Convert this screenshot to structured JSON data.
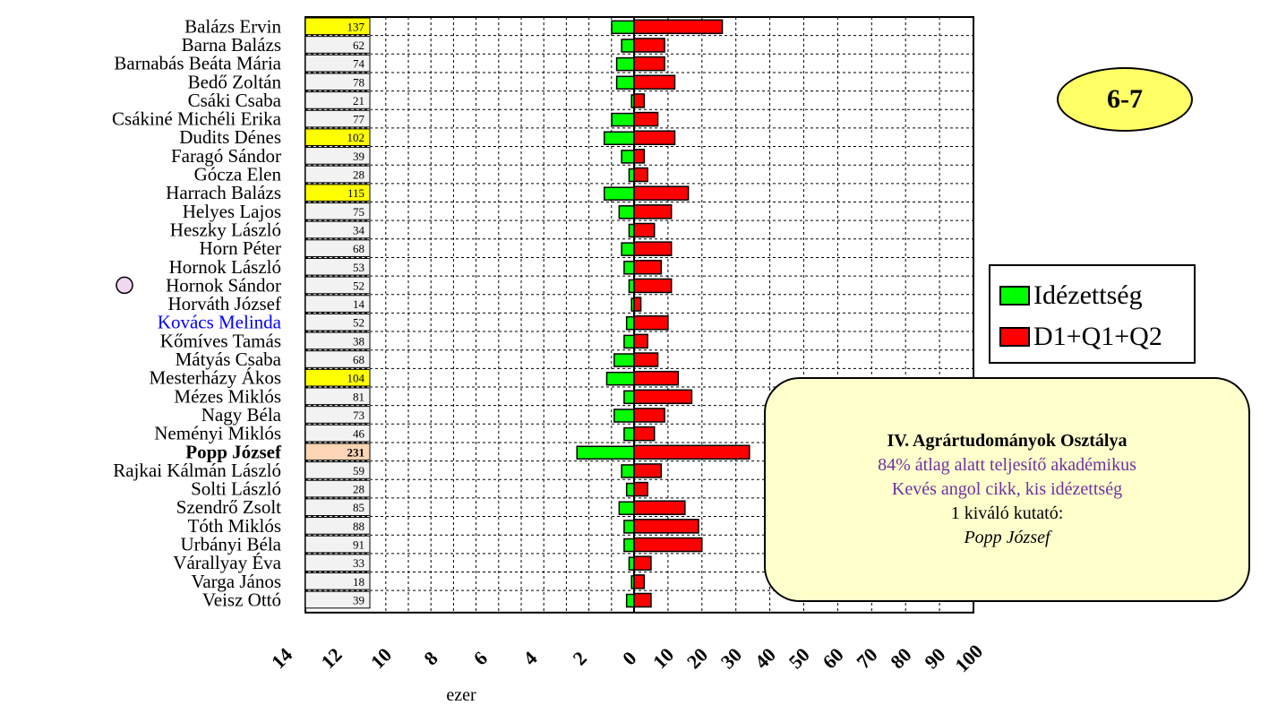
{
  "badge": "6-7",
  "legend": {
    "green": "Idézettség",
    "red": "D1+Q1+Q2"
  },
  "note": {
    "title": "IV. Agrártudományok Osztálya",
    "line1": "84% átlag alatt teljesítő akadémikus",
    "line2": "Kevés angol cikk, kis idézettség",
    "line3": "1 kiváló kutató:",
    "line4": "Popp József"
  },
  "colors": {
    "green": "#00ff00",
    "red": "#ff0000",
    "highlight": "#ffff00",
    "top": "#fbd5b5",
    "default_cell": "#f2f2f2",
    "name_blue": "#0000ff"
  },
  "chart_data": {
    "type": "bar",
    "xlabel": "ezer",
    "left_ticks": [
      "14",
      "12",
      "10",
      "8",
      "6",
      "4",
      "2",
      "0"
    ],
    "right_ticks": [
      "10",
      "20",
      "30",
      "40",
      "50",
      "60",
      "70",
      "80",
      "90",
      "100"
    ],
    "series": [
      {
        "name": "Idézettség",
        "color": "#00ff00",
        "unit": "ezer",
        "scale_max": 14,
        "values": [
          0.9,
          0.5,
          0.7,
          0.7,
          0.1,
          0.9,
          1.2,
          0.5,
          0.2,
          1.2,
          0.6,
          0.2,
          0.5,
          0.4,
          0.2,
          0.1,
          0.3,
          0.4,
          0.8,
          1.1,
          0.4,
          0.8,
          0.4,
          2.3,
          0.5,
          0.3,
          0.6,
          0.4,
          0.4,
          0.2,
          0.1,
          0.3
        ]
      },
      {
        "name": "D1+Q1+Q2",
        "color": "#ff0000",
        "scale_max": 100,
        "values": [
          26,
          9,
          9,
          12,
          3,
          7,
          12,
          3,
          4,
          16,
          11,
          6,
          11,
          8,
          11,
          2,
          10,
          4,
          7,
          13,
          17,
          9,
          6,
          34,
          8,
          4,
          15,
          19,
          20,
          5,
          3,
          5
        ]
      }
    ],
    "categories": [
      "Balázs Ervin",
      "Barna Balázs",
      "Barnabás Beáta Mária",
      "Bedő Zoltán",
      "Csáki Csaba",
      "Csákiné Michéli Erika",
      "Dudits Dénes",
      "Faragó Sándor",
      "Gócza Elen",
      "Harrach Balázs",
      "Helyes Lajos",
      "Heszky László",
      "Horn Péter",
      "Hornok László",
      "Hornok Sándor",
      "Horváth József",
      "Kovács Melinda",
      "Kőmíves Tamás",
      "Mátyás Csaba",
      "Mesterházy Ákos",
      "Mézes Miklós",
      "Nagy Béla",
      "Neményi Miklós",
      "Popp József",
      "Rajkai Kálmán László",
      "Solti László",
      "Szendrő Zsolt",
      "Tóth Miklós",
      "Urbányi Béla",
      "Várallyay Éva",
      "Varga János",
      "Veisz Ottó"
    ],
    "scores": [
      137,
      62,
      74,
      78,
      21,
      77,
      102,
      39,
      28,
      115,
      75,
      34,
      68,
      53,
      52,
      14,
      52,
      38,
      68,
      104,
      81,
      73,
      46,
      231,
      59,
      28,
      85,
      88,
      91,
      33,
      18,
      39
    ],
    "score_style": [
      "highlight",
      "",
      "",
      "",
      "",
      "",
      "highlight",
      "",
      "",
      "highlight",
      "",
      "",
      "",
      "",
      "",
      "",
      "",
      "",
      "",
      "highlight",
      "",
      "",
      "",
      "top",
      "",
      "",
      "",
      "",
      "",
      "",
      "",
      ""
    ],
    "name_style": [
      "",
      "",
      "",
      "",
      "",
      "",
      "",
      "",
      "",
      "",
      "",
      "",
      "",
      "",
      "",
      "",
      "blue",
      "",
      "",
      "",
      "",
      "",
      "",
      "bold",
      "",
      "",
      "",
      "",
      "",
      "",
      "",
      ""
    ],
    "marked": [
      14
    ],
    "grid": true
  }
}
